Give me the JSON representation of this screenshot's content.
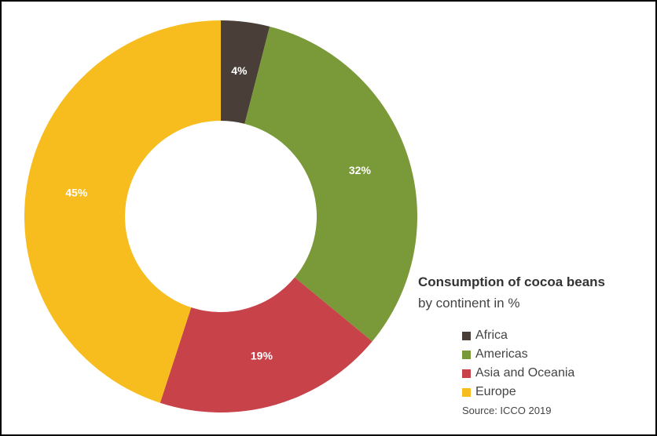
{
  "chart_data": {
    "type": "pie",
    "variant": "donut",
    "title": "Consumption of cocoa beans",
    "subtitle": "by continent in %",
    "source": "Source: ICCO 2019",
    "legend_position": "right",
    "slices": [
      {
        "name": "Africa",
        "value": 4,
        "label": "4%",
        "color": "#4a3f38"
      },
      {
        "name": "Americas",
        "value": 32,
        "label": "32%",
        "color": "#7a9a3a"
      },
      {
        "name": "Asia and Oceania",
        "value": 19,
        "label": "19%",
        "color": "#c8424a"
      },
      {
        "name": "Europe",
        "value": 45,
        "label": "45%",
        "color": "#f7bd1f"
      }
    ]
  }
}
